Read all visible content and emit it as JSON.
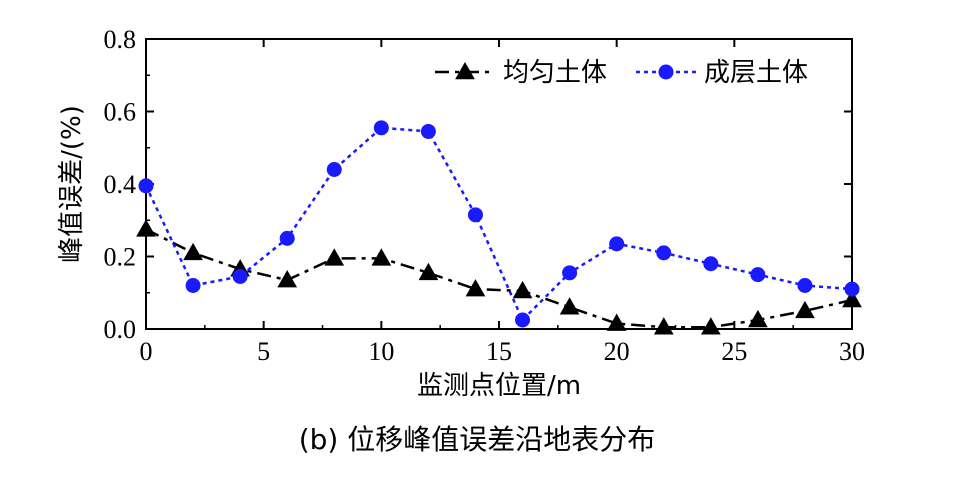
{
  "caption": "(b)  位移峰值误差沿地表分布",
  "chart_data": {
    "type": "line",
    "xlabel": "监测点位置/m",
    "ylabel": "峰值误差/(%)",
    "xlim": [
      0,
      30
    ],
    "ylim": [
      0,
      0.8
    ],
    "xticks": [
      0,
      5,
      10,
      15,
      20,
      25,
      30
    ],
    "yticks": [
      0.0,
      0.2,
      0.4,
      0.6,
      0.8
    ],
    "xtick_labels": [
      "0",
      "5",
      "10",
      "15",
      "20",
      "25",
      "30"
    ],
    "ytick_labels": [
      "0.0",
      "0.2",
      "0.4",
      "0.6",
      "0.8"
    ],
    "grid": false,
    "legend_position": "top-right",
    "x": [
      0,
      2,
      4,
      6,
      8,
      10,
      12,
      14,
      16,
      18,
      20,
      22,
      24,
      26,
      28,
      30
    ],
    "series": [
      {
        "name": "均匀土体",
        "color": "#000000",
        "marker": "triangle",
        "line_style": "dash-dot",
        "values": [
          0.275,
          0.21,
          0.165,
          0.135,
          0.195,
          0.195,
          0.155,
          0.11,
          0.105,
          0.06,
          0.015,
          0.005,
          0.005,
          0.025,
          0.05,
          0.08
        ]
      },
      {
        "name": "成层土体",
        "color": "#1a1aff",
        "marker": "circle",
        "line_style": "dotted",
        "values": [
          0.395,
          0.12,
          0.145,
          0.25,
          0.44,
          0.555,
          0.545,
          0.315,
          0.025,
          0.155,
          0.235,
          0.21,
          0.18,
          0.15,
          0.12,
          0.11
        ]
      }
    ]
  }
}
